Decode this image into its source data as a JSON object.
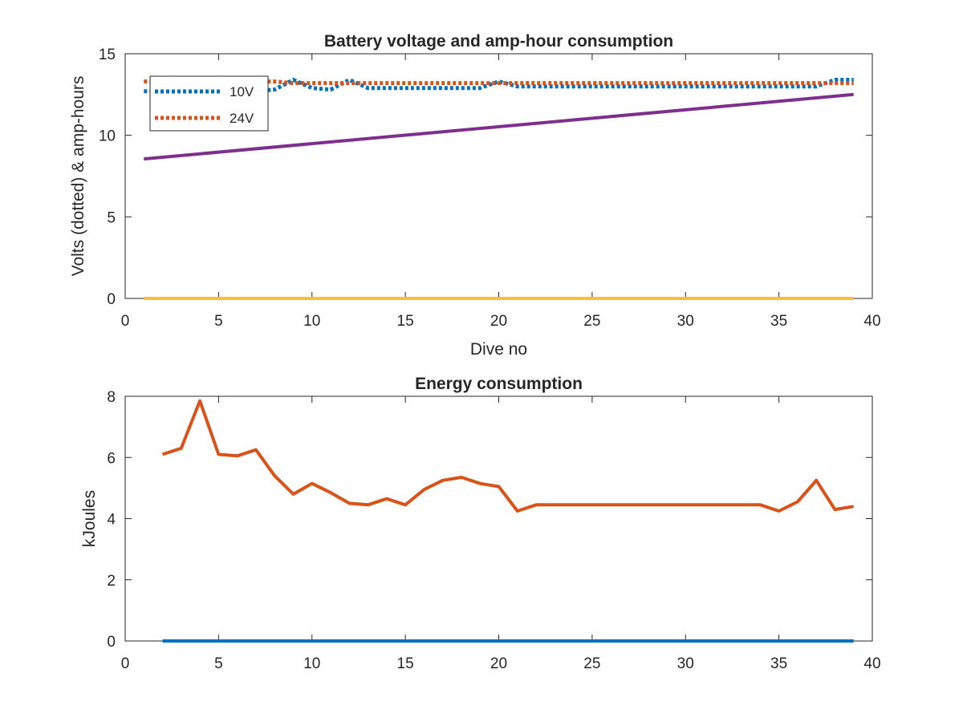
{
  "chart_data": [
    {
      "type": "line",
      "title": "Battery voltage and amp-hour consumption",
      "xlabel": "Dive no",
      "ylabel": "Volts (dotted) & amp-hours",
      "xlim": [
        0,
        40
      ],
      "ylim": [
        0,
        15
      ],
      "xticks": [
        "0",
        "5",
        "10",
        "15",
        "20",
        "25",
        "30",
        "35",
        "40"
      ],
      "yticks": [
        "0",
        "5",
        "10",
        "15"
      ],
      "grid": false,
      "legend_position": "top-left",
      "series": [
        {
          "name": "10V",
          "style": "dotted",
          "color": "#0072BD",
          "x": [
            1,
            2,
            3,
            4,
            5,
            6,
            7,
            8,
            9,
            10,
            11,
            12,
            13,
            14,
            15,
            16,
            17,
            18,
            19,
            20,
            21,
            22,
            23,
            24,
            25,
            26,
            27,
            28,
            29,
            30,
            31,
            32,
            33,
            34,
            35,
            36,
            37,
            38,
            39
          ],
          "values": [
            12.7,
            12.7,
            12.7,
            12.7,
            12.7,
            12.7,
            12.7,
            12.8,
            13.4,
            12.9,
            12.8,
            13.4,
            12.9,
            12.9,
            12.9,
            12.9,
            12.9,
            12.9,
            12.9,
            13.3,
            13.0,
            13.0,
            13.0,
            13.0,
            13.0,
            13.0,
            13.0,
            13.0,
            13.0,
            13.0,
            13.0,
            13.0,
            13.0,
            13.0,
            13.0,
            13.0,
            13.0,
            13.4,
            13.4
          ]
        },
        {
          "name": "24V",
          "style": "dotted",
          "color": "#D95319",
          "x": [
            1,
            2,
            3,
            4,
            5,
            6,
            7,
            8,
            9,
            10,
            11,
            12,
            13,
            14,
            15,
            16,
            17,
            18,
            19,
            20,
            21,
            22,
            23,
            24,
            25,
            26,
            27,
            28,
            29,
            30,
            31,
            32,
            33,
            34,
            35,
            36,
            37,
            38,
            39
          ],
          "values": [
            13.3,
            13.3,
            13.3,
            13.3,
            13.3,
            13.3,
            13.3,
            13.3,
            13.2,
            13.2,
            13.2,
            13.2,
            13.2,
            13.2,
            13.2,
            13.2,
            13.2,
            13.2,
            13.2,
            13.2,
            13.2,
            13.2,
            13.2,
            13.2,
            13.2,
            13.2,
            13.2,
            13.2,
            13.2,
            13.2,
            13.2,
            13.2,
            13.2,
            13.2,
            13.2,
            13.2,
            13.2,
            13.2,
            13.2
          ]
        },
        {
          "style": "solid",
          "color": "#FDBF2F",
          "x": [
            1,
            39
          ],
          "values": [
            0,
            0
          ]
        },
        {
          "style": "solid",
          "color": "#7E2F8E",
          "x": [
            1,
            39
          ],
          "values": [
            8.55,
            12.5
          ]
        }
      ]
    },
    {
      "type": "line",
      "title": "Energy consumption",
      "xlabel": "",
      "ylabel": "kJoules",
      "xlim": [
        0,
        40
      ],
      "ylim": [
        0,
        8
      ],
      "xticks": [
        "0",
        "5",
        "10",
        "15",
        "20",
        "25",
        "30",
        "35",
        "40"
      ],
      "yticks": [
        "0",
        "2",
        "4",
        "6",
        "8"
      ],
      "grid": false,
      "series": [
        {
          "style": "solid",
          "color": "#0072BD",
          "x": [
            2,
            39
          ],
          "values": [
            0,
            0
          ]
        },
        {
          "style": "solid",
          "color": "#D95319",
          "x": [
            2,
            3,
            4,
            5,
            6,
            7,
            8,
            9,
            10,
            11,
            12,
            13,
            14,
            15,
            16,
            17,
            18,
            19,
            20,
            21,
            22,
            23,
            24,
            25,
            26,
            27,
            28,
            29,
            30,
            31,
            32,
            33,
            34,
            35,
            36,
            37,
            38,
            39
          ],
          "values": [
            6.1,
            6.3,
            7.85,
            6.1,
            6.05,
            6.25,
            5.4,
            4.8,
            5.15,
            4.85,
            4.5,
            4.45,
            4.65,
            4.45,
            4.95,
            5.25,
            5.35,
            5.15,
            5.05,
            4.25,
            4.45,
            4.45,
            4.45,
            4.45,
            4.45,
            4.45,
            4.45,
            4.45,
            4.45,
            4.45,
            4.45,
            4.45,
            4.45,
            4.25,
            4.55,
            5.25,
            4.3,
            4.4
          ]
        }
      ]
    }
  ]
}
